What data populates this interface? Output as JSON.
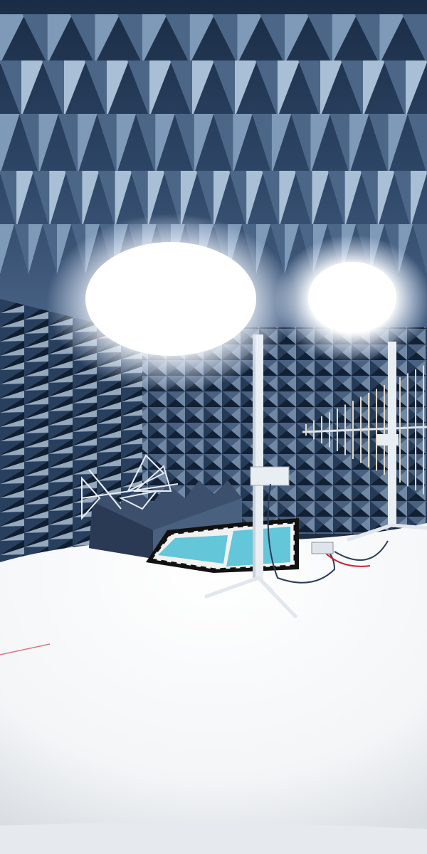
{
  "scene": {
    "subject": "anechoic-chamber",
    "colors": {
      "absorber_deep": "#13233a",
      "absorber_mid": "#3d5677",
      "absorber_light": "#9fb6cf",
      "floor": "#f4f6f8",
      "turntable": "#63c6d9",
      "light_glow": "#ffffff",
      "stand": "#e9eef3",
      "cable_red": "#c8233a"
    },
    "elements": [
      "pyramidal-absorber-ceiling",
      "absorber-side-walls",
      "floodlight-left",
      "floodlight-right",
      "bowtie-biconical-antenna",
      "foam-absorber-block",
      "turntable-platform",
      "antenna-mast",
      "log-periodic-antenna",
      "tripod-stand",
      "cable",
      "floor"
    ]
  }
}
